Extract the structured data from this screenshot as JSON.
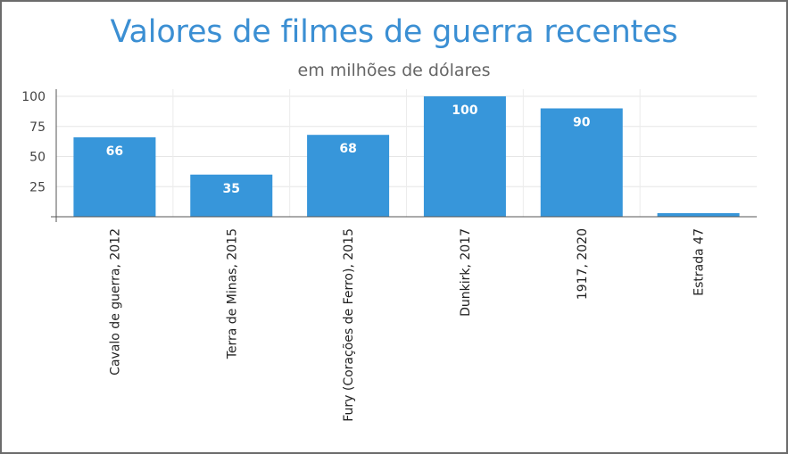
{
  "chart_data": {
    "type": "bar",
    "title": "Valores de filmes de guerra recentes",
    "subtitle": "em milhões de dólares",
    "xlabel": "",
    "ylabel": "",
    "categories": [
      "Cavalo de guerra, 2012",
      "Terra de Minas, 2015",
      "Fury (Corações de Ferro), 2015",
      "Dunkirk, 2017",
      "1917, 2020",
      "Estrada 47"
    ],
    "values": [
      66,
      35,
      68,
      100,
      90,
      3
    ],
    "data_labels": [
      "66",
      "35",
      "68",
      "100",
      "90",
      ""
    ],
    "ylim": [
      0,
      100
    ],
    "yticks": [
      "25",
      "50",
      "75",
      "100"
    ],
    "grid": true,
    "bar_color": "#3796da",
    "title_color": "#3b8fd3",
    "label_color": "#ffffff"
  }
}
